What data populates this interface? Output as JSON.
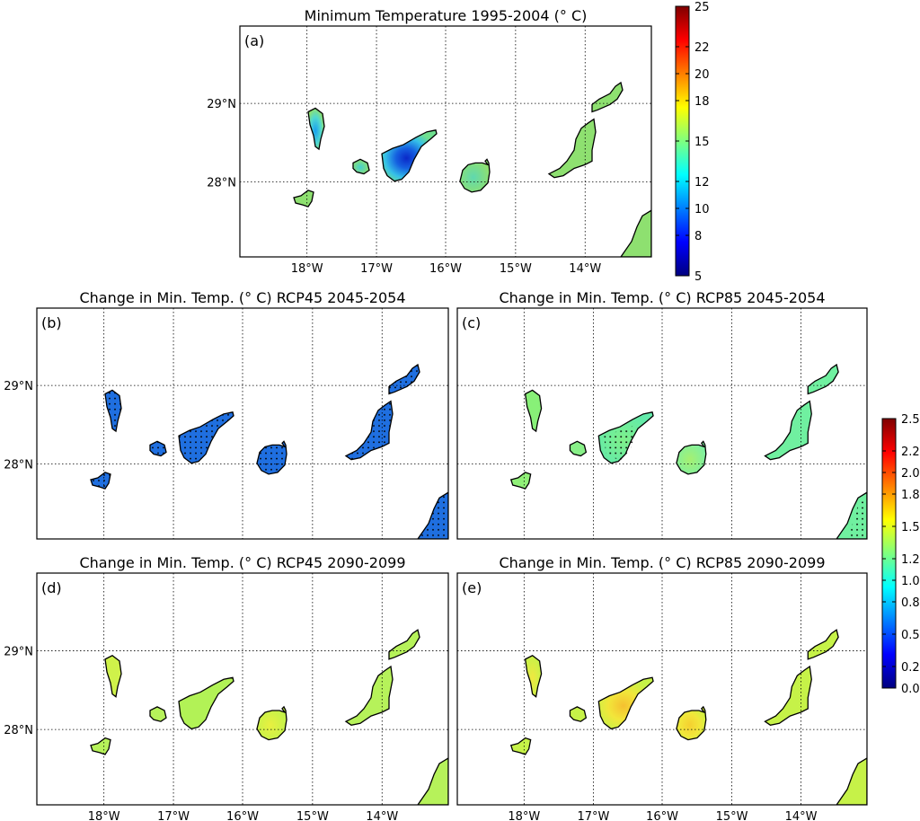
{
  "figure": {
    "panels": [
      {
        "id": "a",
        "label": "(a)",
        "title": "Minimum Temperature 1995-2004 (° C)",
        "show_lat": true,
        "show_lon": true,
        "scheme": "a"
      },
      {
        "id": "b",
        "label": "(b)",
        "title": "Change in Min. Temp. (° C) RCP45 2045-2054",
        "show_lat": true,
        "show_lon": false,
        "scheme": "b"
      },
      {
        "id": "c",
        "label": "(c)",
        "title": "Change in Min. Temp. (° C) RCP85 2045-2054",
        "show_lat": false,
        "show_lon": false,
        "scheme": "c"
      },
      {
        "id": "d",
        "label": "(d)",
        "title": "Change in Min. Temp. (° C) RCP45 2090-2099",
        "show_lat": true,
        "show_lon": true,
        "scheme": "d"
      },
      {
        "id": "e",
        "label": "(e)",
        "title": "Change in Min. Temp. (° C) RCP85 2090-2099",
        "show_lat": false,
        "show_lon": true,
        "scheme": "e"
      }
    ],
    "lat_ticks": [
      "29°N",
      "28°N"
    ],
    "lon_ticks": [
      "18°W",
      "17°W",
      "16°W",
      "15°W",
      "14°W"
    ],
    "colorbar_top": {
      "ticks": [
        "25",
        "22",
        "20",
        "18",
        "15",
        "12",
        "10",
        "8",
        "5"
      ],
      "min": 5,
      "max": 25
    },
    "colorbar_bottom": {
      "ticks": [
        "2.5",
        "2.2",
        "2.0",
        "1.8",
        "1.5",
        "1.2",
        "1.0",
        "0.8",
        "0.5",
        "0.2",
        "0.0"
      ],
      "min": 0,
      "max": 2.5
    },
    "colors": {
      "jet_stops": [
        "#00007f",
        "#0000ff",
        "#007fff",
        "#00ffff",
        "#7fff7f",
        "#ffff00",
        "#ff7f00",
        "#ff0000",
        "#7f0000"
      ],
      "a_green": "#8ee070",
      "a_blue": "#1560e0",
      "a_cyan": "#35c0e8",
      "b_blue": "#1f6fe0",
      "c_green": "#70f0a0",
      "c_light": "#9ef070",
      "d_green": "#b6f25a",
      "e_green": "#c6f248",
      "e_yellow": "#f2e63a",
      "e_orange": "#f5c030"
    }
  },
  "chart_data": {
    "type": "heatmap",
    "title": "Minimum Temperature 1995-2004 (° C)",
    "xlabel": "",
    "ylabel": "",
    "x_ticks": [
      "18°W",
      "17°W",
      "16°W",
      "15°W",
      "14°W"
    ],
    "y_ticks": [
      "29°N",
      "28°N"
    ],
    "xlim": [
      -19,
      -13.1
    ],
    "ylim": [
      27,
      30
    ],
    "grid": true,
    "colorbars": [
      {
        "panel": "a",
        "min": 5,
        "max": 25,
        "ticks": [
          25,
          22,
          20,
          18,
          15,
          12,
          10,
          8,
          5
        ]
      },
      {
        "panel": "b-e",
        "min": 0,
        "max": 2.5,
        "ticks": [
          2.5,
          2.2,
          2.0,
          1.8,
          1.5,
          1.2,
          1.0,
          0.8,
          0.5,
          0.2,
          0.0
        ]
      }
    ]
  }
}
